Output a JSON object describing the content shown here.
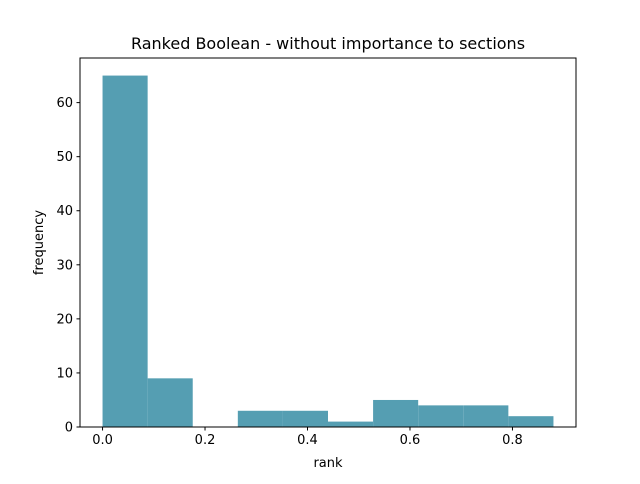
{
  "chart_data": {
    "type": "bar",
    "title": "Ranked Boolean - without importance to sections",
    "xlabel": "rank",
    "ylabel": "frequency",
    "bin_edges": [
      0.0,
      0.088,
      0.176,
      0.264,
      0.352,
      0.44,
      0.528,
      0.616,
      0.704,
      0.792,
      0.88
    ],
    "values": [
      65,
      9,
      0,
      3,
      3,
      1,
      5,
      4,
      4,
      2
    ],
    "xlim": [
      -0.044,
      0.924
    ],
    "ylim": [
      0,
      68.25
    ],
    "xticks": [
      0.0,
      0.2,
      0.4,
      0.6,
      0.8
    ],
    "xtick_labels": [
      "0.0",
      "0.2",
      "0.4",
      "0.6",
      "0.8"
    ],
    "yticks": [
      0,
      10,
      20,
      30,
      40,
      50,
      60
    ],
    "ytick_labels": [
      "0",
      "10",
      "20",
      "30",
      "40",
      "50",
      "60"
    ],
    "bar_color": "#559eb2",
    "grid": false,
    "legend": "none"
  }
}
